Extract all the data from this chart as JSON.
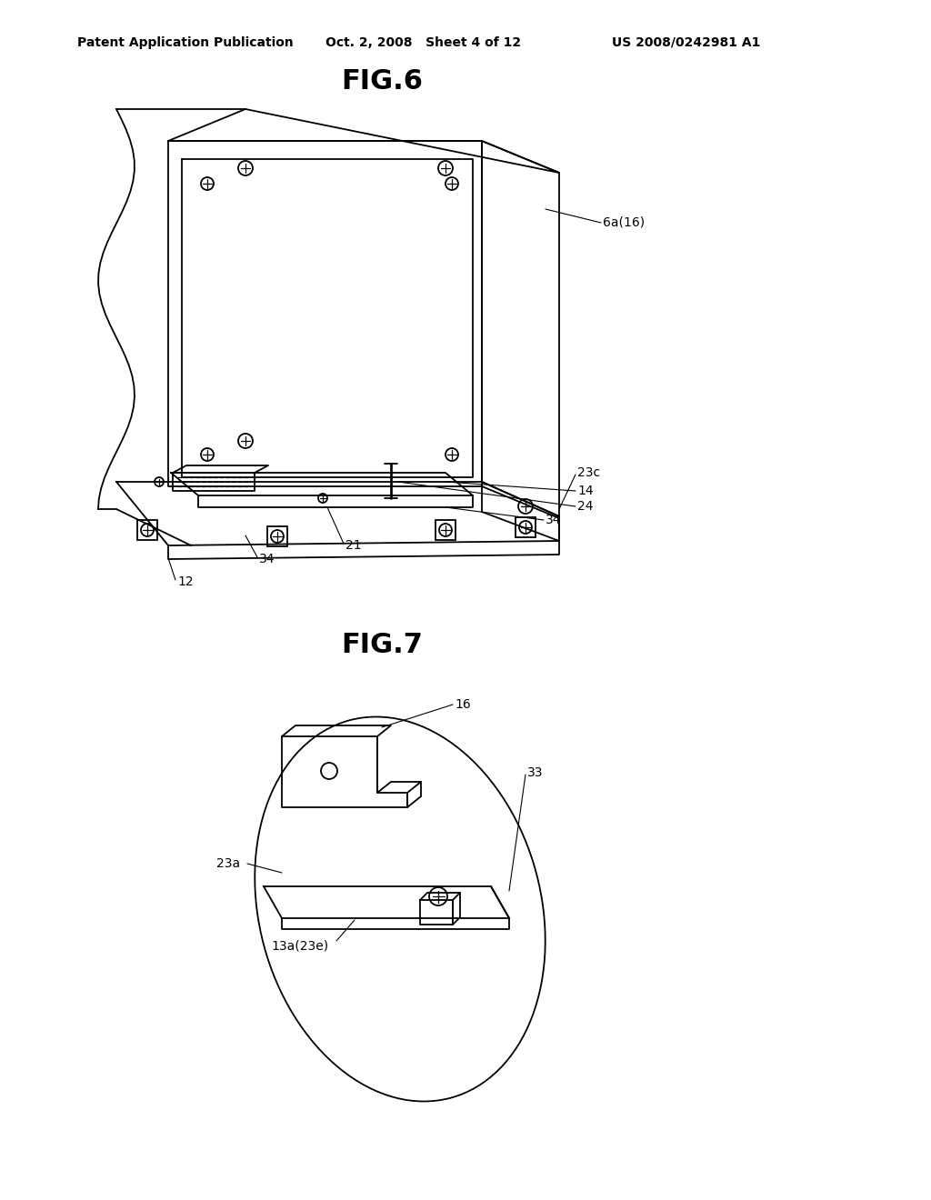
{
  "background_color": "#ffffff",
  "header_left": "Patent Application Publication",
  "header_mid": "Oct. 2, 2008   Sheet 4 of 12",
  "header_right": "US 2008/0242981 A1",
  "fig6_title": "FIG.6",
  "fig7_title": "FIG.7",
  "line_color": "#000000",
  "line_width": 1.3,
  "annotation_fontsize": 10,
  "title_fontsize": 22,
  "header_fontsize": 10
}
